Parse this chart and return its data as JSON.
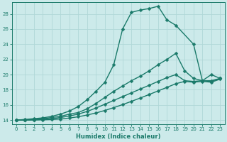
{
  "xlabel": "Humidex (Indice chaleur)",
  "xlim": [
    -0.5,
    23.5
  ],
  "ylim": [
    13.5,
    29.5
  ],
  "yticks": [
    14,
    16,
    18,
    20,
    22,
    24,
    26,
    28
  ],
  "xticks": [
    0,
    1,
    2,
    3,
    4,
    5,
    6,
    7,
    8,
    9,
    10,
    11,
    12,
    13,
    14,
    15,
    16,
    17,
    18,
    19,
    20,
    21,
    22,
    23
  ],
  "background_color": "#cceaea",
  "grid_color": "#b0d8d8",
  "line_color": "#1a7a6a",
  "series": [
    {
      "x": [
        0,
        1,
        2,
        3,
        4,
        5,
        6,
        7,
        8,
        9,
        10,
        11,
        12,
        13,
        14,
        15,
        16,
        17,
        18,
        20,
        21,
        22,
        23
      ],
      "y": [
        14,
        14.1,
        14.2,
        14.3,
        14.5,
        14.8,
        15.2,
        15.8,
        16.7,
        17.8,
        19.0,
        21.3,
        26.0,
        28.2,
        28.5,
        28.7,
        29.0,
        27.2,
        26.5,
        24.0,
        19.2,
        20.0,
        19.5
      ],
      "marker": "D",
      "markersize": 2.5,
      "linewidth": 1.0
    },
    {
      "x": [
        0,
        1,
        2,
        3,
        4,
        5,
        6,
        7,
        8,
        9,
        10,
        11,
        12,
        13,
        14,
        15,
        16,
        17,
        18,
        19,
        20,
        21,
        22,
        23
      ],
      "y": [
        14,
        14.05,
        14.1,
        14.2,
        14.35,
        14.5,
        14.8,
        15.0,
        15.5,
        16.2,
        17.0,
        17.8,
        18.5,
        19.2,
        19.8,
        20.5,
        21.3,
        22.0,
        22.8,
        20.5,
        19.5,
        19.2,
        19.2,
        19.5
      ],
      "marker": "D",
      "markersize": 2.5,
      "linewidth": 1.0
    },
    {
      "x": [
        0,
        1,
        2,
        3,
        4,
        5,
        6,
        7,
        8,
        9,
        10,
        11,
        12,
        13,
        14,
        15,
        16,
        17,
        18,
        19,
        20,
        21,
        22,
        23
      ],
      "y": [
        14,
        14.02,
        14.05,
        14.1,
        14.2,
        14.35,
        14.55,
        14.8,
        15.15,
        15.6,
        16.1,
        16.6,
        17.1,
        17.6,
        18.1,
        18.6,
        19.1,
        19.6,
        20.0,
        19.2,
        19.1,
        19.2,
        19.1,
        19.5
      ],
      "marker": "D",
      "markersize": 2.5,
      "linewidth": 1.0
    },
    {
      "x": [
        0,
        1,
        2,
        3,
        4,
        5,
        6,
        7,
        8,
        9,
        10,
        11,
        12,
        13,
        14,
        15,
        16,
        17,
        18,
        19,
        20,
        21,
        22,
        23
      ],
      "y": [
        14,
        14.01,
        14.02,
        14.04,
        14.08,
        14.15,
        14.28,
        14.45,
        14.68,
        14.95,
        15.28,
        15.65,
        16.05,
        16.48,
        16.92,
        17.38,
        17.85,
        18.32,
        18.8,
        19.1,
        19.0,
        19.1,
        19.0,
        19.4
      ],
      "marker": "D",
      "markersize": 2.5,
      "linewidth": 1.0
    }
  ]
}
